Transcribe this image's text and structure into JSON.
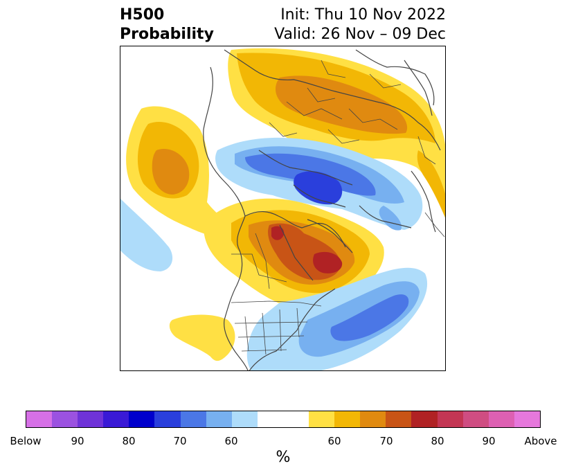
{
  "header": {
    "title_line1": "H500",
    "title_line2": "Probability",
    "init_label": "Init: Thu 10 Nov 2022",
    "valid_label": "Valid: 26 Nov – 09 Dec"
  },
  "colorbar": {
    "unit": "%",
    "colors": [
      "#d670e6",
      "#9b52e0",
      "#6f33d8",
      "#3a1ad6",
      "#0000cc",
      "#2a3fdc",
      "#4b77e6",
      "#77b0f0",
      "#aedcfa",
      "#ffffff",
      "#ffffff",
      "#ffe044",
      "#f2b705",
      "#e08a10",
      "#c85416",
      "#b02224",
      "#c33654",
      "#cf4d82",
      "#dd60b2",
      "#e678dc"
    ],
    "labels": [
      "Below",
      "90",
      "80",
      "70",
      "60",
      "60",
      "70",
      "80",
      "90",
      "Above"
    ]
  },
  "map": {
    "colors": {
      "below_60": "#aedcfa",
      "below_65": "#77b0f0",
      "below_70": "#4b77e6",
      "below_75": "#2a3fdc",
      "above_60": "#ffe044",
      "above_65": "#f2b705",
      "above_70": "#e08a10",
      "above_75": "#c85416",
      "above_80": "#b02224",
      "coastline": "#444444"
    }
  }
}
